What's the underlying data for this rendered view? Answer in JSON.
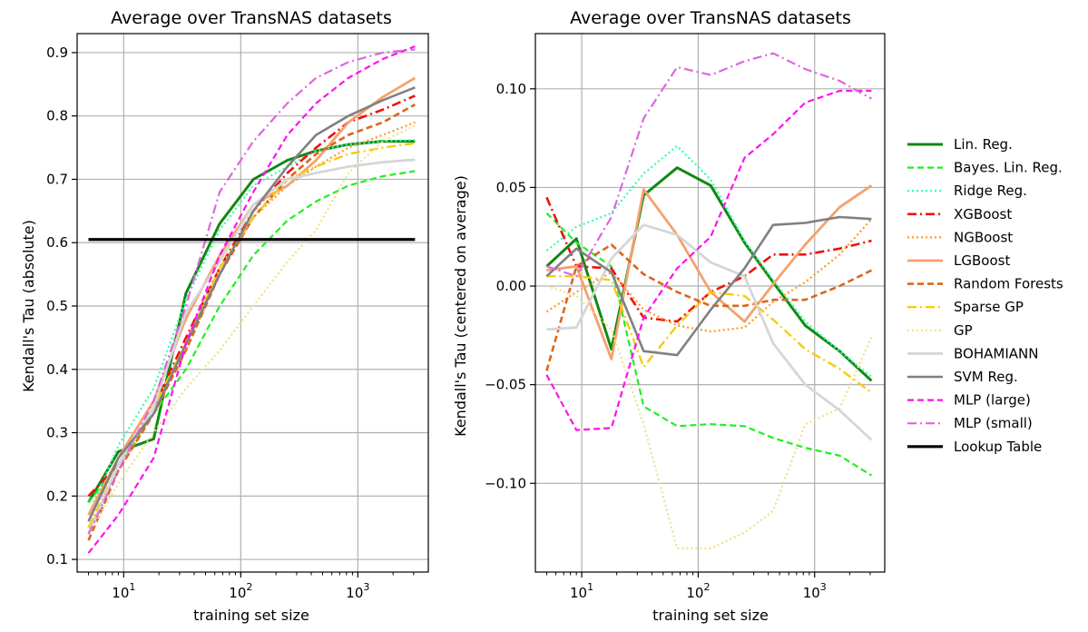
{
  "colors": {
    "Lin. Reg.": "#118811",
    "Bayes. Lin. Reg.": "#22ee22",
    "Ridge Reg.": "#33ffaa",
    "XGBoost": "#ee1111",
    "NGBoost": "#ff9922",
    "LGBoost": "#f5a16c",
    "Random Forests": "#d9661f",
    "Sparse GP": "#f5cc11",
    "GP": "#f0e08a",
    "BOHAMIANN": "#d6d6d6",
    "SVM Reg.": "#808080",
    "MLP (large)": "#ff11ee",
    "MLP (small)": "#dd66dd",
    "Lookup Table": "#000000"
  },
  "chart_data": [
    {
      "type": "line",
      "title": "Average over TransNAS datasets",
      "xlabel": "training set size",
      "ylabel": "Kendall's Tau (absolute)",
      "xscale": "log",
      "xlim": [
        4,
        4000
      ],
      "ylim": [
        0.08,
        0.93
      ],
      "xticks": [
        10,
        100,
        1000
      ],
      "xtick_labels": [
        "10",
        "10",
        "10"
      ],
      "xtick_exps": [
        "1",
        "2",
        "3"
      ],
      "yticks": [
        0.1,
        0.2,
        0.3,
        0.4,
        0.5,
        0.6,
        0.7,
        0.8,
        0.9
      ],
      "ytick_labels": [
        "0.1",
        "0.2",
        "0.3",
        "0.4",
        "0.5",
        "0.6",
        "0.7",
        "0.8",
        "0.9"
      ],
      "grid": true,
      "x": [
        5,
        9,
        18,
        34,
        66,
        128,
        250,
        440,
        830,
        1640,
        3080
      ],
      "series": [
        {
          "name": "Lin. Reg.",
          "values": [
            0.19,
            0.27,
            0.29,
            0.52,
            0.63,
            0.7,
            0.73,
            0.745,
            0.755,
            0.76,
            0.76
          ]
        },
        {
          "name": "Bayes. Lin. Reg.",
          "values": [
            0.19,
            0.25,
            0.33,
            0.4,
            0.5,
            0.58,
            0.635,
            0.665,
            0.69,
            0.705,
            0.713
          ]
        },
        {
          "name": "Ridge Reg.",
          "values": [
            0.17,
            0.28,
            0.37,
            0.51,
            0.62,
            0.69,
            0.72,
            0.745,
            0.755,
            0.76,
            0.762
          ]
        },
        {
          "name": "XGBoost",
          "values": [
            0.2,
            0.25,
            0.34,
            0.45,
            0.56,
            0.65,
            0.71,
            0.75,
            0.79,
            0.81,
            0.832
          ]
        },
        {
          "name": "NGBoost",
          "values": [
            0.15,
            0.24,
            0.33,
            0.43,
            0.55,
            0.64,
            0.69,
            0.72,
            0.75,
            0.77,
            0.79
          ]
        },
        {
          "name": "LGBoost",
          "values": [
            0.17,
            0.26,
            0.35,
            0.48,
            0.58,
            0.66,
            0.69,
            0.73,
            0.79,
            0.83,
            0.86
          ]
        },
        {
          "name": "Random Forests",
          "values": [
            0.13,
            0.24,
            0.33,
            0.43,
            0.55,
            0.64,
            0.7,
            0.74,
            0.77,
            0.79,
            0.818
          ]
        },
        {
          "name": "Sparse GP",
          "values": [
            0.15,
            0.25,
            0.34,
            0.44,
            0.56,
            0.64,
            0.7,
            0.72,
            0.74,
            0.75,
            0.757
          ]
        },
        {
          "name": "GP",
          "values": [
            0.14,
            0.22,
            0.3,
            0.37,
            0.43,
            0.5,
            0.57,
            0.62,
            0.71,
            0.76,
            0.785
          ]
        },
        {
          "name": "BOHAMIANN",
          "values": [
            0.14,
            0.25,
            0.34,
            0.49,
            0.57,
            0.66,
            0.7,
            0.71,
            0.72,
            0.727,
            0.731
          ]
        },
        {
          "name": "SVM Reg.",
          "values": [
            0.16,
            0.26,
            0.33,
            0.44,
            0.55,
            0.65,
            0.72,
            0.77,
            0.8,
            0.825,
            0.845
          ]
        },
        {
          "name": "MLP (large)",
          "values": [
            0.11,
            0.17,
            0.26,
            0.44,
            0.58,
            0.68,
            0.77,
            0.82,
            0.86,
            0.89,
            0.91
          ]
        },
        {
          "name": "MLP (small)",
          "values": [
            0.14,
            0.24,
            0.35,
            0.5,
            0.68,
            0.76,
            0.82,
            0.86,
            0.885,
            0.9,
            0.905
          ]
        }
      ],
      "hline": {
        "name": "Lookup Table",
        "value": 0.605,
        "x_range": [
          5,
          3080
        ]
      }
    },
    {
      "type": "line",
      "title": "Average over TransNAS datasets",
      "xlabel": "training set size",
      "ylabel": "Kendall's Tau (centered on average)",
      "xscale": "log",
      "xlim": [
        4,
        4000
      ],
      "ylim": [
        -0.145,
        0.128
      ],
      "xticks": [
        10,
        100,
        1000
      ],
      "xtick_labels": [
        "10",
        "10",
        "10"
      ],
      "xtick_exps": [
        "1",
        "2",
        "3"
      ],
      "yticks": [
        -0.1,
        -0.05,
        0.0,
        0.05,
        0.1
      ],
      "ytick_labels": [
        "−0.10",
        "−0.05",
        "0.00",
        "0.05",
        "0.10"
      ],
      "grid": true,
      "x": [
        5,
        9,
        18,
        34,
        66,
        128,
        250,
        440,
        830,
        1640,
        3080
      ],
      "series": [
        {
          "name": "Lin. Reg.",
          "values": [
            0.01,
            0.024,
            -0.032,
            0.046,
            0.06,
            0.051,
            0.022,
            0.002,
            -0.02,
            -0.033,
            -0.048
          ]
        },
        {
          "name": "Bayes. Lin. Reg.",
          "values": [
            0.037,
            0.022,
            0.01,
            -0.061,
            -0.071,
            -0.07,
            -0.071,
            -0.077,
            -0.082,
            -0.086,
            -0.096
          ]
        },
        {
          "name": "Ridge Reg.",
          "values": [
            0.018,
            0.03,
            0.037,
            0.057,
            0.071,
            0.054,
            0.023,
            0.003,
            -0.018,
            -0.033,
            -0.046
          ]
        },
        {
          "name": "XGBoost",
          "values": [
            0.045,
            0.01,
            0.009,
            -0.016,
            -0.018,
            -0.003,
            0.005,
            0.016,
            0.016,
            0.019,
            0.023
          ]
        },
        {
          "name": "NGBoost",
          "values": [
            -0.013,
            -0.003,
            0.007,
            -0.012,
            -0.02,
            -0.023,
            -0.021,
            -0.008,
            0.002,
            0.016,
            0.034
          ]
        },
        {
          "name": "LGBoost",
          "values": [
            0.008,
            0.01,
            -0.037,
            0.049,
            0.026,
            -0.003,
            -0.018,
            0.001,
            0.021,
            0.04,
            0.051
          ]
        },
        {
          "name": "Random Forests",
          "values": [
            -0.043,
            0.01,
            0.021,
            0.006,
            -0.003,
            -0.01,
            -0.01,
            -0.007,
            -0.007,
            0.0,
            0.008
          ]
        },
        {
          "name": "Sparse GP",
          "values": [
            0.005,
            0.005,
            0.003,
            -0.041,
            -0.02,
            -0.003,
            -0.005,
            -0.017,
            -0.032,
            -0.042,
            -0.054
          ]
        },
        {
          "name": "GP",
          "values": [
            0.0,
            -0.005,
            -0.022,
            -0.07,
            -0.133,
            -0.133,
            -0.125,
            -0.114,
            -0.07,
            -0.062,
            -0.026
          ]
        },
        {
          "name": "BOHAMIANN",
          "values": [
            -0.022,
            -0.021,
            0.014,
            0.031,
            0.026,
            0.012,
            0.005,
            -0.029,
            -0.05,
            -0.063,
            -0.078
          ]
        },
        {
          "name": "SVM Reg.",
          "values": [
            0.005,
            0.019,
            0.007,
            -0.033,
            -0.035,
            -0.012,
            0.009,
            0.031,
            0.032,
            0.035,
            0.034
          ]
        },
        {
          "name": "MLP (large)",
          "values": [
            -0.045,
            -0.073,
            -0.072,
            -0.016,
            0.009,
            0.025,
            0.065,
            0.077,
            0.093,
            0.099,
            0.099
          ]
        },
        {
          "name": "MLP (small)",
          "values": [
            0.01,
            0.005,
            0.035,
            0.085,
            0.111,
            0.107,
            0.114,
            0.118,
            0.11,
            0.104,
            0.095
          ]
        }
      ]
    }
  ],
  "legend": {
    "placement": "right",
    "entries": [
      "Lin. Reg.",
      "Bayes. Lin. Reg.",
      "Ridge Reg.",
      "XGBoost",
      "NGBoost",
      "LGBoost",
      "Random Forests",
      "Sparse GP",
      "GP",
      "BOHAMIANN",
      "SVM Reg.",
      "MLP (large)",
      "MLP (small)",
      "Lookup Table"
    ]
  }
}
